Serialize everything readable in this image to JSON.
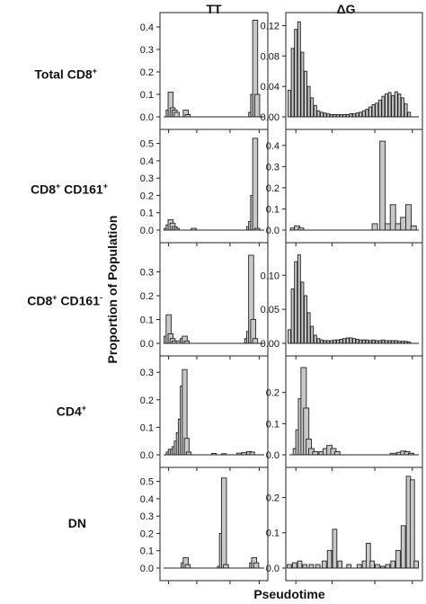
{
  "figure": {
    "col_titles": [
      "TT",
      "ΔG"
    ],
    "row_labels": [
      {
        "base": "Total CD8",
        "sup": "+",
        "base2": "",
        "sup2": ""
      },
      {
        "base": "CD8",
        "sup": "+",
        "base2": "CD161",
        "sup2": "+"
      },
      {
        "base": "CD8",
        "sup": "+",
        "base2": "CD161",
        "sup2": "-"
      },
      {
        "base": "CD4",
        "sup": "+",
        "base2": "",
        "sup2": ""
      },
      {
        "base": "DN",
        "sup": "",
        "base2": "",
        "sup2": ""
      }
    ],
    "xlabel": "Pseudotime",
    "ylabel": "Proportion of Population"
  },
  "chart_data": [
    {
      "type": "bar",
      "panel": "Total CD8+ / TT",
      "xlim": [
        0,
        1
      ],
      "ylim": [
        0,
        0.44
      ],
      "yticks": [
        "0.0",
        "0.1",
        "0.2",
        "0.3",
        "0.4"
      ],
      "bins": [
        [
          0.05,
          0.03
        ],
        [
          0.07,
          0.11
        ],
        [
          0.09,
          0.04
        ],
        [
          0.11,
          0.03
        ],
        [
          0.13,
          0.02
        ],
        [
          0.22,
          0.03
        ],
        [
          0.24,
          0.01
        ],
        [
          0.87,
          0.02
        ],
        [
          0.89,
          0.1
        ],
        [
          0.91,
          0.43
        ],
        [
          0.93,
          0.1
        ]
      ]
    },
    {
      "type": "bar",
      "panel": "Total CD8+ / ΔG",
      "xlim": [
        0,
        1
      ],
      "ylim": [
        0,
        0.13
      ],
      "yticks": [
        "0.00",
        "0.04",
        "0.08",
        "0.12"
      ],
      "bins": [
        [
          0.0,
          0.035
        ],
        [
          0.025,
          0.09
        ],
        [
          0.05,
          0.115
        ],
        [
          0.075,
          0.125
        ],
        [
          0.1,
          0.085
        ],
        [
          0.125,
          0.06
        ],
        [
          0.15,
          0.04
        ],
        [
          0.175,
          0.025
        ],
        [
          0.2,
          0.015
        ],
        [
          0.225,
          0.008
        ],
        [
          0.25,
          0.006
        ],
        [
          0.275,
          0.005
        ],
        [
          0.3,
          0.004
        ],
        [
          0.325,
          0.003
        ],
        [
          0.35,
          0.003
        ],
        [
          0.375,
          0.003
        ],
        [
          0.4,
          0.003
        ],
        [
          0.425,
          0.003
        ],
        [
          0.45,
          0.003
        ],
        [
          0.475,
          0.004
        ],
        [
          0.5,
          0.004
        ],
        [
          0.525,
          0.005
        ],
        [
          0.55,
          0.006
        ],
        [
          0.575,
          0.008
        ],
        [
          0.6,
          0.01
        ],
        [
          0.625,
          0.013
        ],
        [
          0.65,
          0.016
        ],
        [
          0.675,
          0.018
        ],
        [
          0.7,
          0.022
        ],
        [
          0.725,
          0.027
        ],
        [
          0.75,
          0.03
        ],
        [
          0.775,
          0.032
        ],
        [
          0.8,
          0.028
        ],
        [
          0.825,
          0.033
        ],
        [
          0.85,
          0.03
        ],
        [
          0.875,
          0.025
        ],
        [
          0.9,
          0.017
        ],
        [
          0.925,
          0.006
        ]
      ]
    },
    {
      "type": "bar",
      "panel": "CD8+CD161+ / TT",
      "xlim": [
        0,
        1
      ],
      "ylim": [
        0,
        0.55
      ],
      "yticks": [
        "0.0",
        "0.1",
        "0.2",
        "0.3",
        "0.4",
        "0.5"
      ],
      "bins": [
        [
          0.03,
          0.01
        ],
        [
          0.05,
          0.03
        ],
        [
          0.07,
          0.06
        ],
        [
          0.09,
          0.04
        ],
        [
          0.11,
          0.02
        ],
        [
          0.13,
          0.01
        ],
        [
          0.3,
          0.01
        ],
        [
          0.85,
          0.02
        ],
        [
          0.87,
          0.05
        ],
        [
          0.89,
          0.2
        ],
        [
          0.91,
          0.53
        ],
        [
          0.93,
          0.01
        ]
      ]
    },
    {
      "type": "bar",
      "panel": "CD8+CD161+ / ΔG",
      "xlim": [
        0,
        1
      ],
      "ylim": [
        0,
        0.45
      ],
      "yticks": [
        "0.0",
        "0.1",
        "0.2",
        "0.3",
        "0.4"
      ],
      "bins": [
        [
          0.03,
          0.01
        ],
        [
          0.06,
          0.02
        ],
        [
          0.09,
          0.01
        ],
        [
          0.66,
          0.03
        ],
        [
          0.72,
          0.42
        ],
        [
          0.76,
          0.03
        ],
        [
          0.8,
          0.12
        ],
        [
          0.84,
          0.03
        ],
        [
          0.88,
          0.06
        ],
        [
          0.92,
          0.12
        ],
        [
          0.96,
          0.02
        ]
      ]
    },
    {
      "type": "bar",
      "panel": "CD8+CD161- / TT",
      "xlim": [
        0,
        1
      ],
      "ylim": [
        0,
        0.4
      ],
      "yticks": [
        "0.0",
        "0.1",
        "0.2",
        "0.3"
      ],
      "bins": [
        [
          0.03,
          0.03
        ],
        [
          0.05,
          0.12
        ],
        [
          0.07,
          0.04
        ],
        [
          0.09,
          0.02
        ],
        [
          0.11,
          0.01
        ],
        [
          0.15,
          0.01
        ],
        [
          0.19,
          0.02
        ],
        [
          0.21,
          0.03
        ],
        [
          0.23,
          0.01
        ],
        [
          0.83,
          0.02
        ],
        [
          0.85,
          0.05
        ],
        [
          0.87,
          0.37
        ],
        [
          0.89,
          0.1
        ],
        [
          0.91,
          0.02
        ]
      ]
    },
    {
      "type": "bar",
      "panel": "CD8+CD161- / ΔG",
      "xlim": [
        0,
        1
      ],
      "ylim": [
        0,
        0.14
      ],
      "yticks": [
        "0.00",
        "0.05",
        "0.10"
      ],
      "bins": [
        [
          0.0,
          0.02
        ],
        [
          0.025,
          0.08
        ],
        [
          0.05,
          0.12
        ],
        [
          0.075,
          0.13
        ],
        [
          0.1,
          0.09
        ],
        [
          0.125,
          0.07
        ],
        [
          0.15,
          0.045
        ],
        [
          0.175,
          0.025
        ],
        [
          0.2,
          0.012
        ],
        [
          0.225,
          0.007
        ],
        [
          0.25,
          0.005
        ],
        [
          0.275,
          0.004
        ],
        [
          0.3,
          0.004
        ],
        [
          0.325,
          0.004
        ],
        [
          0.35,
          0.005
        ],
        [
          0.375,
          0.005
        ],
        [
          0.4,
          0.006
        ],
        [
          0.425,
          0.007
        ],
        [
          0.45,
          0.008
        ],
        [
          0.475,
          0.008
        ],
        [
          0.5,
          0.007
        ],
        [
          0.525,
          0.006
        ],
        [
          0.55,
          0.005
        ],
        [
          0.575,
          0.005
        ],
        [
          0.6,
          0.005
        ],
        [
          0.625,
          0.004
        ],
        [
          0.65,
          0.005
        ],
        [
          0.675,
          0.004
        ],
        [
          0.7,
          0.004
        ],
        [
          0.725,
          0.005
        ],
        [
          0.75,
          0.004
        ],
        [
          0.775,
          0.004
        ],
        [
          0.8,
          0.004
        ],
        [
          0.825,
          0.004
        ],
        [
          0.85,
          0.003
        ],
        [
          0.875,
          0.003
        ],
        [
          0.9,
          0.003
        ],
        [
          0.925,
          0.002
        ]
      ]
    },
    {
      "type": "bar",
      "panel": "CD4+ / TT",
      "xlim": [
        0,
        1
      ],
      "ylim": [
        0,
        0.34
      ],
      "yticks": [
        "0.0",
        "0.1",
        "0.2",
        "0.3"
      ],
      "bins": [
        [
          0.05,
          0.01
        ],
        [
          0.07,
          0.02
        ],
        [
          0.09,
          0.02
        ],
        [
          0.11,
          0.03
        ],
        [
          0.13,
          0.05
        ],
        [
          0.15,
          0.08
        ],
        [
          0.17,
          0.13
        ],
        [
          0.19,
          0.25
        ],
        [
          0.21,
          0.31
        ],
        [
          0.23,
          0.06
        ],
        [
          0.25,
          0.01
        ],
        [
          0.5,
          0.005
        ],
        [
          0.6,
          0.004
        ],
        [
          0.75,
          0.006
        ],
        [
          0.8,
          0.008
        ],
        [
          0.85,
          0.012
        ],
        [
          0.88,
          0.01
        ]
      ]
    },
    {
      "type": "bar",
      "panel": "CD4+ / ΔG",
      "xlim": [
        0,
        1
      ],
      "ylim": [
        0,
        0.3
      ],
      "yticks": [
        "0.0",
        "0.1",
        "0.2"
      ],
      "bins": [
        [
          0.05,
          0.02
        ],
        [
          0.07,
          0.08
        ],
        [
          0.09,
          0.18
        ],
        [
          0.11,
          0.28
        ],
        [
          0.13,
          0.15
        ],
        [
          0.15,
          0.05
        ],
        [
          0.17,
          0.02
        ],
        [
          0.2,
          0.01
        ],
        [
          0.25,
          0.01
        ],
        [
          0.28,
          0.02
        ],
        [
          0.31,
          0.03
        ],
        [
          0.34,
          0.02
        ],
        [
          0.37,
          0.01
        ],
        [
          0.8,
          0.005
        ],
        [
          0.85,
          0.008
        ],
        [
          0.88,
          0.012
        ],
        [
          0.91,
          0.01
        ],
        [
          0.94,
          0.005
        ]
      ]
    },
    {
      "type": "bar",
      "panel": "DN / TT",
      "xlim": [
        0,
        1
      ],
      "ylim": [
        0,
        0.55
      ],
      "yticks": [
        "0.0",
        "0.1",
        "0.2",
        "0.3",
        "0.4",
        "0.5"
      ],
      "bins": [
        [
          0.2,
          0.03
        ],
        [
          0.22,
          0.06
        ],
        [
          0.24,
          0.02
        ],
        [
          0.56,
          0.01
        ],
        [
          0.58,
          0.2
        ],
        [
          0.6,
          0.52
        ],
        [
          0.62,
          0.02
        ],
        [
          0.88,
          0.03
        ],
        [
          0.9,
          0.06
        ],
        [
          0.92,
          0.03
        ]
      ]
    },
    {
      "type": "bar",
      "panel": "DN / ΔG",
      "xlim": [
        0,
        1
      ],
      "ylim": [
        0,
        0.27
      ],
      "yticks": [
        "0.0",
        "0.1",
        "0.2"
      ],
      "bins": [
        [
          0.0,
          0.01
        ],
        [
          0.04,
          0.015
        ],
        [
          0.08,
          0.02
        ],
        [
          0.12,
          0.01
        ],
        [
          0.17,
          0.01
        ],
        [
          0.22,
          0.01
        ],
        [
          0.27,
          0.02
        ],
        [
          0.31,
          0.05
        ],
        [
          0.35,
          0.11
        ],
        [
          0.39,
          0.02
        ],
        [
          0.46,
          0.01
        ],
        [
          0.54,
          0.01
        ],
        [
          0.58,
          0.02
        ],
        [
          0.61,
          0.07
        ],
        [
          0.64,
          0.02
        ],
        [
          0.68,
          0.01
        ],
        [
          0.72,
          0.005
        ],
        [
          0.76,
          0.01
        ],
        [
          0.8,
          0.02
        ],
        [
          0.84,
          0.05
        ],
        [
          0.88,
          0.12
        ],
        [
          0.92,
          0.26
        ],
        [
          0.95,
          0.25
        ],
        [
          0.98,
          0.02
        ]
      ]
    }
  ]
}
